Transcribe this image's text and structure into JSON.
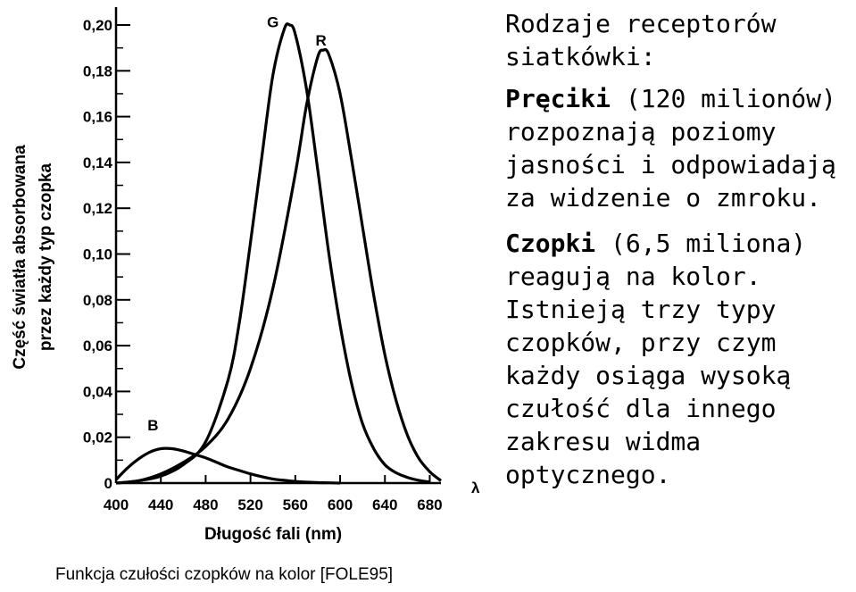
{
  "text_panel": {
    "heading": "Rodzaje receptorów siatkówki:",
    "rods_term": "Pręciki",
    "rods_text": " (120 milionów) rozpoznają poziomy jasności i odpowiadają za widzenie o zmroku.",
    "cones_term": "Czopki",
    "cones_text": " (6,5 miliona) reagują na kolor. Istnieją trzy typy czopków, przy czym każdy osiąga wysoką czułość dla innego zakresu widma optycznego."
  },
  "caption": "Funkcja czułości czopków na kolor [FOLE95]",
  "chart_data": {
    "type": "line",
    "xlabel": "Długość fali (nm)",
    "ylabel_line1": "Część światła absorbowana",
    "ylabel_line2": "przez każdy typ czopka",
    "axis_symbol": "λ",
    "xlim": [
      400,
      690
    ],
    "ylim": [
      0,
      0.2
    ],
    "x_ticks": [
      400,
      440,
      480,
      520,
      560,
      600,
      640,
      680
    ],
    "x_tick_labels": [
      "400",
      "440",
      "480",
      "520",
      "560",
      "600",
      "640",
      "680"
    ],
    "y_ticks": [
      0,
      0.02,
      0.04,
      0.06,
      0.08,
      0.1,
      0.12,
      0.14,
      0.16,
      0.18,
      0.2
    ],
    "y_tick_labels": [
      "0",
      "0,02",
      "0,04",
      "0,06",
      "0,08",
      "0,10",
      "0,12",
      "0,14",
      "0,16",
      "0,18",
      "0,20"
    ],
    "grid": false,
    "series": [
      {
        "name": "B",
        "color": "#000000",
        "x": [
          400,
          410,
          420,
          430,
          440,
          450,
          460,
          470,
          480,
          490,
          500,
          510,
          520,
          530,
          540,
          550,
          560,
          570,
          580,
          590,
          600
        ],
        "y": [
          0.0015,
          0.0065,
          0.0105,
          0.0135,
          0.015,
          0.015,
          0.014,
          0.0125,
          0.011,
          0.009,
          0.007,
          0.0055,
          0.004,
          0.0028,
          0.0018,
          0.0012,
          0.0007,
          0.0004,
          0.0002,
          0.0001,
          0.0
        ]
      },
      {
        "name": "G",
        "color": "#000000",
        "x": [
          400,
          420,
          440,
          460,
          480,
          500,
          510,
          520,
          530,
          540,
          550,
          555,
          560,
          570,
          580,
          590,
          600,
          610,
          620,
          630,
          640,
          650,
          660,
          670,
          680
        ],
        "y": [
          0.0,
          0.001,
          0.003,
          0.008,
          0.018,
          0.045,
          0.07,
          0.105,
          0.142,
          0.178,
          0.198,
          0.2,
          0.196,
          0.172,
          0.137,
          0.1,
          0.069,
          0.044,
          0.026,
          0.015,
          0.008,
          0.0045,
          0.0025,
          0.0012,
          0.0004
        ]
      },
      {
        "name": "R",
        "color": "#000000",
        "x": [
          400,
          420,
          440,
          460,
          480,
          500,
          520,
          540,
          560,
          570,
          580,
          585,
          590,
          600,
          610,
          620,
          630,
          640,
          650,
          660,
          670,
          680,
          690
        ],
        "y": [
          0.0,
          0.001,
          0.004,
          0.009,
          0.016,
          0.028,
          0.05,
          0.085,
          0.135,
          0.165,
          0.186,
          0.189,
          0.187,
          0.17,
          0.142,
          0.112,
          0.082,
          0.056,
          0.036,
          0.021,
          0.011,
          0.005,
          0.001
        ]
      }
    ],
    "annotations": [
      {
        "text": "G",
        "x": 540,
        "y": 0.199
      },
      {
        "text": "R",
        "x": 583,
        "y": 0.191
      },
      {
        "text": "B",
        "x": 433,
        "y": 0.023
      }
    ]
  }
}
